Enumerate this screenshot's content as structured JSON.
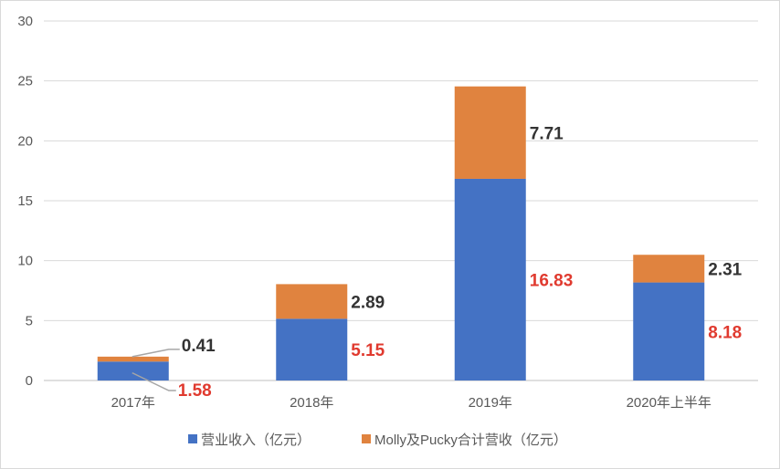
{
  "chart_data": {
    "type": "bar",
    "stacked": true,
    "categories": [
      "2017年",
      "2018年",
      "2019年",
      "2020年上半年"
    ],
    "series": [
      {
        "name": "营业收入（亿元）",
        "values": [
          1.58,
          5.15,
          16.83,
          8.18
        ],
        "color": "#4472c4",
        "label_color": "#e03a2f"
      },
      {
        "name": "Molly及Pucky合计营收（亿元）",
        "values": [
          0.41,
          2.89,
          7.71,
          2.31
        ],
        "color": "#e0833f",
        "label_color": "#333333"
      }
    ],
    "ylim": [
      0,
      30
    ],
    "yticks": [
      "0",
      "5",
      "10",
      "15",
      "20",
      "25",
      "30"
    ],
    "data_labels": {
      "bottom": [
        "1.58",
        "5.15",
        "16.83",
        "8.18"
      ],
      "top": [
        "0.41",
        "2.89",
        "7.71",
        "2.31"
      ]
    },
    "grid": true,
    "legend_position": "bottom"
  }
}
